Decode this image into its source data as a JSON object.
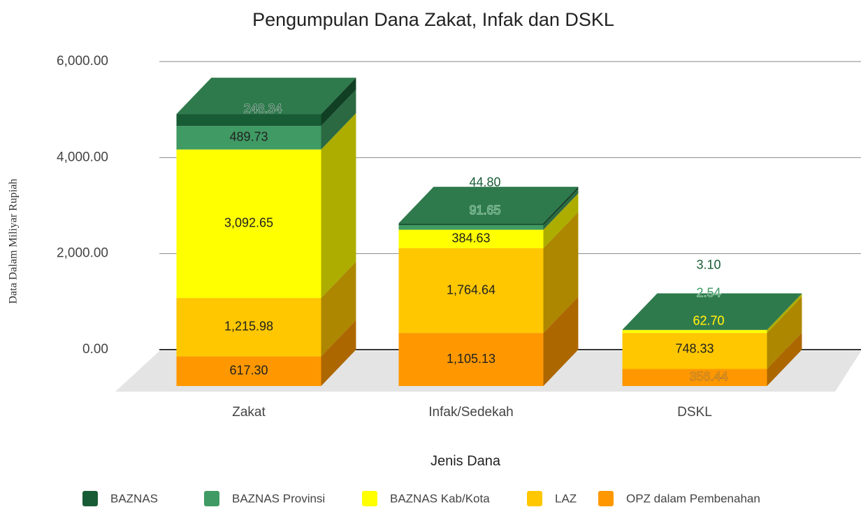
{
  "chart_data": {
    "type": "bar3d_stacked",
    "title": "Pengumpulan Dana Zakat, Infak dan DSKL",
    "x_label": "Jenis Dana",
    "y_label": "Data Dalam Miliyar Rupiah",
    "categories": [
      "Zakat",
      "Infak/Sedekah",
      "DSKL"
    ],
    "series": [
      {
        "name": "OPZ dalam Pembenahan",
        "color": "#ff9800",
        "values": [
          617.3,
          1105.13,
          356.44
        ],
        "value_labels": [
          "617.30",
          "1,105.13",
          "356.44"
        ]
      },
      {
        "name": "LAZ",
        "color": "#ffc700",
        "values": [
          1215.98,
          1764.64,
          748.33
        ],
        "value_labels": [
          "1,215.98",
          "1,764.64",
          "748.33"
        ]
      },
      {
        "name": "BAZNAS Kab/Kota",
        "color": "#ffff00",
        "values": [
          3092.65,
          384.63,
          62.7
        ],
        "value_labels": [
          "3,092.65",
          "384.63",
          "62.70"
        ]
      },
      {
        "name": "BAZNAS Provinsi",
        "color": "#3f9a63",
        "values": [
          489.73,
          91.65,
          2.54
        ],
        "value_labels": [
          "489.73",
          "91.65",
          "2.54"
        ]
      },
      {
        "name": "BAZNAS",
        "color": "#185c35",
        "values": [
          248.34,
          44.8,
          3.1
        ],
        "value_labels": [
          "248.34",
          "44.80",
          "3.10"
        ]
      }
    ],
    "legend_order": [
      4,
      3,
      2,
      1,
      0
    ],
    "ylim": [
      0,
      6000
    ],
    "yticks": [
      {
        "value": 0,
        "label": "0.00"
      },
      {
        "value": 2000,
        "label": "2,000.00"
      },
      {
        "value": 4000,
        "label": "4,000.00"
      },
      {
        "value": 6000,
        "label": "6,000.00"
      }
    ],
    "grid": true,
    "legend": "bottom"
  }
}
